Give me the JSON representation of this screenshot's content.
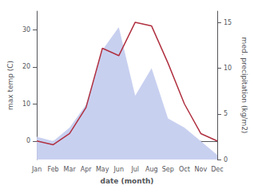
{
  "chart_data": {
    "type": "line",
    "xlabel": "date (month)",
    "ylabel": "max temp (C)",
    "y2label": "med. precipitation (kg/m2)",
    "categories": [
      "Jan",
      "Feb",
      "Mar",
      "Apr",
      "May",
      "Jun",
      "Jul",
      "Aug",
      "Sep",
      "Oct",
      "Nov",
      "Dec"
    ],
    "series": [
      {
        "type": "area",
        "axis": "y2",
        "color": "#c8d0f0",
        "values": [
          2.5,
          2.0,
          3.5,
          6.0,
          12.0,
          14.5,
          7.0,
          10.0,
          4.5,
          3.5,
          2.0,
          0.5
        ]
      },
      {
        "type": "line",
        "color": "#b03040",
        "values": [
          0,
          -1,
          2,
          9,
          25,
          23,
          32,
          31,
          21,
          10,
          2,
          0
        ]
      }
    ],
    "ylim": [
      -5,
      35
    ],
    "yticks": [
      0,
      10,
      20,
      30
    ],
    "y2lim": [
      0,
      16.25
    ],
    "y2ticks": [
      0,
      5,
      10,
      15
    ],
    "grid": false
  }
}
